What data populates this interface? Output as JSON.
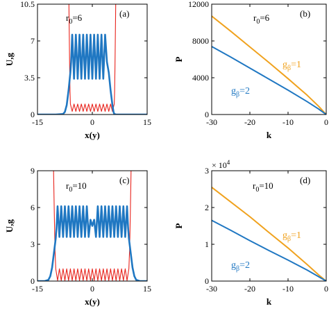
{
  "chart_data": [
    {
      "panel": "(a)",
      "type": "line",
      "xlabel": "x(y)",
      "ylabel": "U,g",
      "xlim": [
        -15,
        15
      ],
      "ylim": [
        0,
        10.5
      ],
      "xticks": [
        -15,
        0,
        15
      ],
      "xtick_labels": [
        "-15",
        "0",
        "15"
      ],
      "yticks": [
        0,
        3.5,
        7,
        10.5
      ],
      "ytick_labels": [
        "0",
        "3.5",
        "7",
        "10.5"
      ],
      "annotation": {
        "main": "r",
        "sub": "0",
        "rest": "=6"
      },
      "series": [
        {
          "role": "potential",
          "color": "#e8231c",
          "x": [
            -6.4,
            -6.3,
            -6.2,
            -6.1,
            -6.0,
            -5.5,
            -5.0,
            -4.5,
            -4.0,
            -3.5,
            -3.0,
            -2.5,
            -2.0,
            -1.5,
            -1.0,
            -0.5,
            0.0,
            0.5,
            1.0,
            1.5,
            2.0,
            2.5,
            3.0,
            3.5,
            4.0,
            4.5,
            5.0,
            5.5,
            6.0,
            6.1,
            6.2,
            6.3,
            6.4
          ],
          "y": [
            10.5,
            7.5,
            4.5,
            2.2,
            1.0,
            0.3,
            1.0,
            0.3,
            1.0,
            0.3,
            1.0,
            0.3,
            1.0,
            0.3,
            1.0,
            0.3,
            1.0,
            0.3,
            1.0,
            0.3,
            1.0,
            0.3,
            1.0,
            0.3,
            1.0,
            0.3,
            1.0,
            0.3,
            1.0,
            2.2,
            4.5,
            7.5,
            10.5
          ]
        },
        {
          "role": "soliton",
          "color": "#1f77c2",
          "x": [
            -15,
            -10,
            -8,
            -7.5,
            -7,
            -6.5,
            -6.0,
            -5.8,
            -5.5,
            -5.0,
            -4.5,
            -4.0,
            -3.5,
            -3.0,
            -2.5,
            -2.0,
            -1.5,
            -1.0,
            -0.5,
            0.0,
            0.5,
            1.0,
            1.5,
            2.0,
            2.5,
            3.0,
            3.5,
            4.0,
            4.5,
            5.0,
            5.5,
            5.8,
            6.0,
            6.5,
            7,
            7.5,
            8,
            10,
            15
          ],
          "y": [
            0,
            0,
            0.05,
            0.25,
            0.9,
            2.3,
            4.0,
            5.0,
            7.6,
            3.4,
            7.6,
            3.4,
            7.6,
            3.4,
            7.6,
            3.4,
            7.6,
            3.4,
            7.6,
            3.4,
            7.6,
            3.4,
            7.6,
            3.4,
            7.6,
            3.4,
            7.6,
            5.0,
            4.0,
            2.3,
            0.9,
            0.25,
            0.05,
            0,
            0,
            0,
            0,
            0,
            0
          ]
        }
      ]
    },
    {
      "panel": "(b)",
      "type": "line",
      "xlabel": "k",
      "ylabel": "P",
      "xlim": [
        -30,
        0
      ],
      "ylim": [
        0,
        12000
      ],
      "xticks": [
        -30,
        -20,
        -10,
        0
      ],
      "xtick_labels": [
        "-30",
        "-20",
        "-10",
        "0"
      ],
      "yticks": [
        0,
        4000,
        8000,
        12000
      ],
      "ytick_labels": [
        "0",
        "4000",
        "8000",
        "12000"
      ],
      "annotation": {
        "main": "r",
        "sub": "0",
        "rest": "=6"
      },
      "series": [
        {
          "label_main": "g",
          "label_sub": "β",
          "label_rest": "=1",
          "color": "#f0a21e",
          "x": [
            -30,
            -25,
            -20,
            -15,
            -10,
            -5,
            -2,
            0
          ],
          "y": [
            10700,
            9050,
            7350,
            5650,
            3900,
            2100,
            900,
            0
          ]
        },
        {
          "label_main": "g",
          "label_sub": "β",
          "label_rest": "=2",
          "color": "#1f77c2",
          "x": [
            -30,
            -25,
            -20,
            -15,
            -10,
            -5,
            -2,
            0
          ],
          "y": [
            7400,
            6250,
            5050,
            3850,
            2650,
            1400,
            600,
            0
          ]
        }
      ]
    },
    {
      "panel": "(c)",
      "type": "line",
      "xlabel": "x(y)",
      "ylabel": "U,g",
      "xlim": [
        -15,
        15
      ],
      "ylim": [
        0,
        9
      ],
      "xticks": [
        -15,
        0,
        15
      ],
      "xtick_labels": [
        "-15",
        "0",
        "15"
      ],
      "yticks": [
        0,
        3,
        6,
        9
      ],
      "ytick_labels": [
        "0",
        "3",
        "6",
        "9"
      ],
      "annotation": {
        "main": "r",
        "sub": "0",
        "rest": "=10"
      },
      "series": [
        {
          "role": "potential",
          "color": "#e8231c",
          "x": [
            -10.6,
            -10.4,
            -10.2,
            -10.0,
            -9.5,
            -9.0,
            -8.5,
            -8.0,
            -7.5,
            -7.0,
            -6.5,
            -6.0,
            -5.5,
            -5.0,
            -4.5,
            -4.0,
            -3.5,
            -3.0,
            -2.5,
            -2.0,
            -1.5,
            -1.0,
            -0.5,
            0.0,
            0.5,
            1.0,
            1.5,
            2.0,
            2.5,
            3.0,
            3.5,
            4.0,
            4.5,
            5.0,
            5.5,
            6.0,
            6.5,
            7.0,
            7.5,
            8.0,
            8.5,
            9.0,
            9.5,
            10.0,
            10.2,
            10.4,
            10.6
          ],
          "y": [
            9,
            5.5,
            2.5,
            1.0,
            0.05,
            1.0,
            0.05,
            1.0,
            0.05,
            1.0,
            0.05,
            1.0,
            0.05,
            1.0,
            0.05,
            1.0,
            0.05,
            1.0,
            0.05,
            1.0,
            0.05,
            1.0,
            0.05,
            1.0,
            0.05,
            1.0,
            0.05,
            1.0,
            0.05,
            1.0,
            0.05,
            1.0,
            0.05,
            1.0,
            0.05,
            1.0,
            0.05,
            1.0,
            0.05,
            1.0,
            0.05,
            1.0,
            0.05,
            1.0,
            2.5,
            5.5,
            9
          ]
        },
        {
          "role": "soliton",
          "color": "#1f77c2",
          "x": [
            -15,
            -13,
            -12,
            -11.5,
            -11,
            -10.5,
            -10.0,
            -9.8,
            -9.5,
            -9.0,
            -8.5,
            -8.0,
            -7.5,
            -7.0,
            -6.5,
            -6.0,
            -5.5,
            -5.0,
            -4.5,
            -4.0,
            -3.5,
            -3.0,
            -2.5,
            -2.0,
            -1.5,
            -1.0,
            -0.5,
            0.0,
            0.5,
            1.0,
            1.5,
            2.0,
            2.5,
            3.0,
            3.5,
            4.0,
            4.5,
            5.0,
            5.5,
            6.0,
            6.5,
            7.0,
            7.5,
            8.0,
            8.5,
            9.0,
            9.5,
            9.8,
            10.0,
            10.5,
            11,
            11.5,
            12,
            13,
            15
          ],
          "y": [
            0,
            0,
            0.1,
            0.4,
            1.1,
            2.3,
            3.5,
            4.3,
            6.1,
            3.6,
            6.1,
            3.6,
            6.1,
            3.6,
            6.1,
            3.6,
            6.1,
            3.6,
            6.1,
            3.6,
            6.1,
            3.6,
            6.1,
            3.6,
            6.1,
            3.6,
            5.0,
            4.5,
            5.0,
            3.6,
            6.1,
            3.6,
            6.1,
            3.6,
            6.1,
            3.6,
            6.1,
            3.6,
            6.1,
            3.6,
            6.1,
            3.6,
            6.1,
            3.6,
            6.1,
            3.6,
            6.1,
            4.3,
            3.5,
            2.3,
            1.1,
            0.4,
            0.1,
            0,
            0
          ]
        }
      ]
    },
    {
      "panel": "(d)",
      "type": "line",
      "xlabel": "k",
      "ylabel": "P",
      "xlim": [
        -30,
        0
      ],
      "ylim": [
        0,
        3
      ],
      "y_multiplier": {
        "base": "× 10",
        "exp": "4"
      },
      "xticks": [
        -30,
        -20,
        -10,
        0
      ],
      "xtick_labels": [
        "-30",
        "-20",
        "-10",
        "0"
      ],
      "yticks": [
        0,
        1,
        2,
        3
      ],
      "ytick_labels": [
        "0",
        "1",
        "2",
        "3"
      ],
      "annotation": {
        "main": "r",
        "sub": "0",
        "rest": "=10"
      },
      "series": [
        {
          "label_main": "g",
          "label_sub": "β",
          "label_rest": "=1",
          "color": "#f0a21e",
          "x": [
            -30,
            -25,
            -20,
            -15,
            -10,
            -5,
            -2,
            0
          ],
          "y": [
            2.55,
            2.15,
            1.75,
            1.32,
            0.9,
            0.45,
            0.17,
            0
          ]
        },
        {
          "label_main": "g",
          "label_sub": "β",
          "label_rest": "=2",
          "color": "#1f77c2",
          "x": [
            -30,
            -25,
            -20,
            -15,
            -10,
            -5,
            -2,
            0
          ],
          "y": [
            1.65,
            1.38,
            1.1,
            0.83,
            0.57,
            0.3,
            0.12,
            0
          ]
        }
      ]
    }
  ]
}
